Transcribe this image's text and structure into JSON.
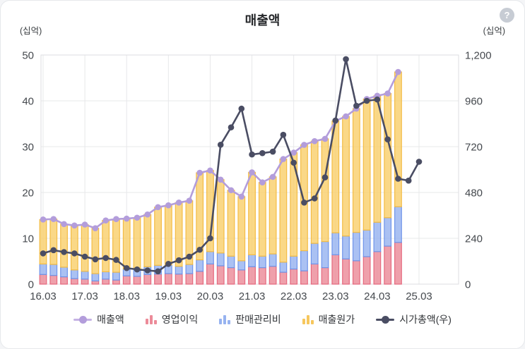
{
  "card": {
    "title": "매출액",
    "help_label": "?",
    "unit_left": "(십억)",
    "unit_right": "(십억)"
  },
  "legend": {
    "items": [
      {
        "label": "매출액",
        "type": "line",
        "color": "#b39ddb"
      },
      {
        "label": "영업이익",
        "type": "bars",
        "color": "#ec8b99"
      },
      {
        "label": "판매관리비",
        "type": "bars",
        "color": "#97b3f0"
      },
      {
        "label": "매출원가",
        "type": "bars",
        "color": "#f6c75d"
      },
      {
        "label": "시가총액(우)",
        "type": "line",
        "color": "#4a4d63"
      }
    ]
  },
  "chart_data": {
    "type": "combo-stacked-bar-line",
    "title": "매출액",
    "categories": [
      "16.03",
      "16.06",
      "16.09",
      "16.12",
      "17.03",
      "17.06",
      "17.09",
      "17.12",
      "18.03",
      "18.06",
      "18.09",
      "18.12",
      "19.03",
      "19.06",
      "19.09",
      "19.12",
      "20.03",
      "20.06",
      "20.09",
      "20.12",
      "21.03",
      "21.06",
      "21.09",
      "21.12",
      "22.03",
      "22.06",
      "22.09",
      "22.12",
      "23.03",
      "23.06",
      "23.09",
      "23.12",
      "24.03",
      "24.06",
      "24.09",
      "24.12",
      "25.03"
    ],
    "x_tick_labels": [
      "16.03",
      "17.03",
      "18.03",
      "19.03",
      "20.03",
      "21.03",
      "22.03",
      "23.03",
      "24.03",
      "25.03"
    ],
    "left_axis": {
      "unit": "(십억)",
      "min": 0,
      "max": 50,
      "ticks": [
        0,
        10,
        20,
        30,
        40,
        50
      ],
      "tick_labels": [
        "0",
        "10",
        "20",
        "30",
        "40",
        "50"
      ]
    },
    "right_axis": {
      "unit": "(십억)",
      "min": 0,
      "max": 1200,
      "ticks": [
        0,
        240,
        480,
        720,
        960,
        1200
      ],
      "tick_labels": [
        "0",
        "240",
        "480",
        "720",
        "960",
        "1,200"
      ]
    },
    "grid": true,
    "legend_position": "bottom",
    "series": [
      {
        "name": "영업이익",
        "type": "bar",
        "axis": "left",
        "stack": 1,
        "fill": "#ec8b99",
        "stroke": "#e5697e",
        "values": [
          2.1,
          1.9,
          1.6,
          1.2,
          1.1,
          0.7,
          1.1,
          0.9,
          1.8,
          1.7,
          2.1,
          2.2,
          2.3,
          2.2,
          2.3,
          2.8,
          4.4,
          4.0,
          3.6,
          3.1,
          3.8,
          3.6,
          3.9,
          2.6,
          3.3,
          2.9,
          4.4,
          3.6,
          6.4,
          5.5,
          5.1,
          6.0,
          7.1,
          8.3,
          9.1,
          null,
          null
        ]
      },
      {
        "name": "판매관리비",
        "type": "bar",
        "axis": "left",
        "stack": 2,
        "fill": "#97b3f0",
        "stroke": "#6f94e9",
        "values": [
          2.3,
          2.4,
          2.1,
          1.9,
          1.7,
          1.6,
          1.6,
          1.7,
          1.5,
          1.5,
          1.7,
          1.9,
          1.9,
          1.7,
          2.0,
          2.5,
          2.7,
          2.8,
          2.5,
          2.0,
          2.6,
          2.5,
          2.7,
          2.2,
          2.8,
          4.4,
          4.5,
          5.7,
          4.8,
          5.0,
          6.2,
          5.8,
          6.4,
          6.2,
          7.8,
          null,
          null
        ]
      },
      {
        "name": "매출원가",
        "type": "bar",
        "axis": "left",
        "stack": 3,
        "fill": "#f9cf6d",
        "stroke": "#f3bc45",
        "values": [
          9.7,
          9.9,
          9.4,
          9.7,
          10.2,
          9.9,
          11.2,
          11.6,
          11.0,
          11.3,
          11.4,
          12.7,
          13.0,
          13.9,
          13.9,
          19.0,
          17.7,
          16.0,
          14.4,
          14.0,
          18.0,
          16.1,
          16.8,
          22.5,
          22.6,
          23.1,
          22.3,
          22.4,
          24.4,
          26.1,
          27.0,
          28.6,
          27.6,
          27.1,
          29.4,
          null,
          null
        ]
      },
      {
        "name": "매출액",
        "type": "line",
        "axis": "left",
        "color": "#b39ddb",
        "marker": true,
        "values": [
          14.1,
          14.2,
          13.1,
          12.8,
          13.0,
          12.2,
          13.9,
          14.2,
          14.3,
          14.5,
          15.2,
          16.8,
          17.2,
          17.8,
          18.2,
          24.3,
          24.8,
          22.8,
          20.5,
          19.1,
          24.4,
          22.2,
          23.4,
          27.3,
          28.7,
          30.4,
          31.2,
          31.7,
          35.6,
          36.6,
          38.3,
          40.4,
          41.1,
          41.6,
          46.3,
          null,
          null
        ]
      },
      {
        "name": "시가총액(우)",
        "type": "line",
        "axis": "right",
        "color": "#4a4d63",
        "marker": true,
        "values": [
          161,
          178,
          168,
          161,
          144,
          130,
          137,
          127,
          84,
          77,
          72,
          67,
          106,
          125,
          144,
          180,
          240,
          730,
          821,
          919,
          679,
          686,
          694,
          782,
          636,
          427,
          449,
          559,
          857,
          1178,
          934,
          960,
          967,
          758,
          552,
          542,
          641
        ]
      }
    ]
  }
}
